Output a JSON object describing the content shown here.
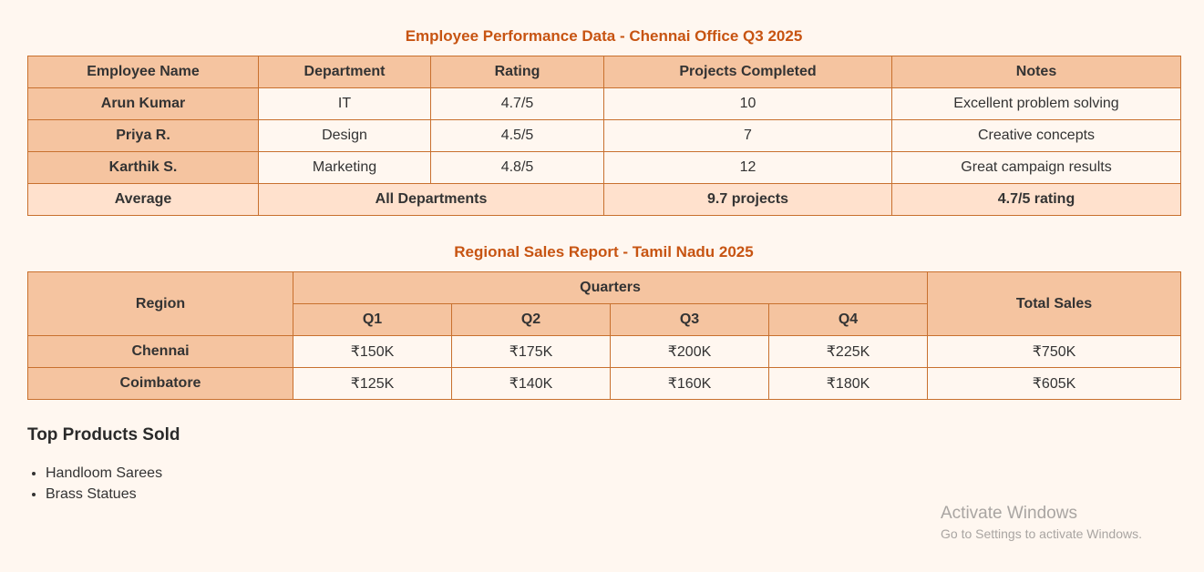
{
  "employee_table": {
    "caption": "Employee Performance Data - Chennai Office Q3 2025",
    "headers": [
      "Employee Name",
      "Department",
      "Rating",
      "Projects Completed",
      "Notes"
    ],
    "rows": [
      [
        "Arun Kumar",
        "IT",
        "4.7/5",
        "10",
        "Excellent problem solving"
      ],
      [
        "Priya R.",
        "Design",
        "4.5/5",
        "7",
        "Creative concepts"
      ],
      [
        "Karthik S.",
        "Marketing",
        "4.8/5",
        "12",
        "Great campaign results"
      ]
    ],
    "average": {
      "label": "Average",
      "departments": "All Departments",
      "projects": "9.7 projects",
      "rating": "4.7/5 rating"
    }
  },
  "sales_table": {
    "caption": "Regional Sales Report - Tamil Nadu 2025",
    "headers": {
      "region": "Region",
      "quarters": "Quarters",
      "q1": "Q1",
      "q2": "Q2",
      "q3": "Q3",
      "q4": "Q4",
      "total": "Total Sales"
    },
    "rows": [
      [
        "Chennai",
        "₹150K",
        "₹175K",
        "₹200K",
        "₹225K",
        "₹750K"
      ],
      [
        "Coimbatore",
        "₹125K",
        "₹140K",
        "₹160K",
        "₹180K",
        "₹605K"
      ]
    ]
  },
  "products": {
    "heading": "Top Products Sold",
    "items": [
      "Handloom Sarees",
      "Brass Statues"
    ]
  },
  "watermark": {
    "title": "Activate Windows",
    "subtitle": "Go to Settings to activate Windows."
  },
  "colors": {
    "accent": "#c75412",
    "header_bg": "#f5c4a0",
    "average_bg": "#ffe1cd",
    "page_bg": "#fff7f0",
    "border": "#c8702e"
  }
}
